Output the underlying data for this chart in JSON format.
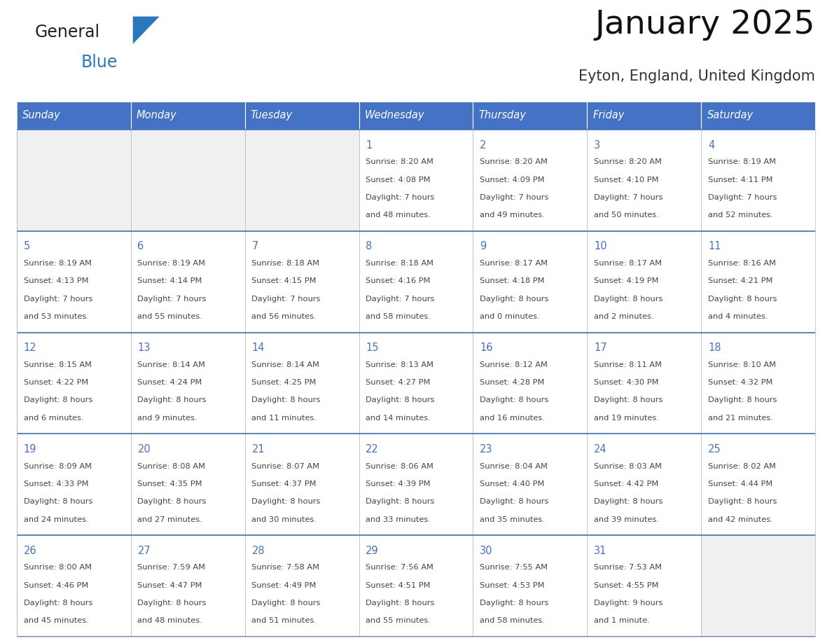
{
  "title": "January 2025",
  "subtitle": "Eyton, England, United Kingdom",
  "header_bg": "#4472C4",
  "header_text_color": "#FFFFFF",
  "cell_bg_white": "#FFFFFF",
  "cell_bg_gray": "#F0F0F0",
  "day_number_color": "#4472C4",
  "text_color": "#444444",
  "border_color": "#4472C4",
  "cell_border_color": "#AAAAAA",
  "days_of_week": [
    "Sunday",
    "Monday",
    "Tuesday",
    "Wednesday",
    "Thursday",
    "Friday",
    "Saturday"
  ],
  "calendar_data": [
    [
      null,
      null,
      null,
      {
        "day": 1,
        "sunrise": "8:20 AM",
        "sunset": "4:08 PM",
        "daylight": "7 hours and 48 minutes."
      },
      {
        "day": 2,
        "sunrise": "8:20 AM",
        "sunset": "4:09 PM",
        "daylight": "7 hours and 49 minutes."
      },
      {
        "day": 3,
        "sunrise": "8:20 AM",
        "sunset": "4:10 PM",
        "daylight": "7 hours and 50 minutes."
      },
      {
        "day": 4,
        "sunrise": "8:19 AM",
        "sunset": "4:11 PM",
        "daylight": "7 hours and 52 minutes."
      }
    ],
    [
      {
        "day": 5,
        "sunrise": "8:19 AM",
        "sunset": "4:13 PM",
        "daylight": "7 hours and 53 minutes."
      },
      {
        "day": 6,
        "sunrise": "8:19 AM",
        "sunset": "4:14 PM",
        "daylight": "7 hours and 55 minutes."
      },
      {
        "day": 7,
        "sunrise": "8:18 AM",
        "sunset": "4:15 PM",
        "daylight": "7 hours and 56 minutes."
      },
      {
        "day": 8,
        "sunrise": "8:18 AM",
        "sunset": "4:16 PM",
        "daylight": "7 hours and 58 minutes."
      },
      {
        "day": 9,
        "sunrise": "8:17 AM",
        "sunset": "4:18 PM",
        "daylight": "8 hours and 0 minutes."
      },
      {
        "day": 10,
        "sunrise": "8:17 AM",
        "sunset": "4:19 PM",
        "daylight": "8 hours and 2 minutes."
      },
      {
        "day": 11,
        "sunrise": "8:16 AM",
        "sunset": "4:21 PM",
        "daylight": "8 hours and 4 minutes."
      }
    ],
    [
      {
        "day": 12,
        "sunrise": "8:15 AM",
        "sunset": "4:22 PM",
        "daylight": "8 hours and 6 minutes."
      },
      {
        "day": 13,
        "sunrise": "8:14 AM",
        "sunset": "4:24 PM",
        "daylight": "8 hours and 9 minutes."
      },
      {
        "day": 14,
        "sunrise": "8:14 AM",
        "sunset": "4:25 PM",
        "daylight": "8 hours and 11 minutes."
      },
      {
        "day": 15,
        "sunrise": "8:13 AM",
        "sunset": "4:27 PM",
        "daylight": "8 hours and 14 minutes."
      },
      {
        "day": 16,
        "sunrise": "8:12 AM",
        "sunset": "4:28 PM",
        "daylight": "8 hours and 16 minutes."
      },
      {
        "day": 17,
        "sunrise": "8:11 AM",
        "sunset": "4:30 PM",
        "daylight": "8 hours and 19 minutes."
      },
      {
        "day": 18,
        "sunrise": "8:10 AM",
        "sunset": "4:32 PM",
        "daylight": "8 hours and 21 minutes."
      }
    ],
    [
      {
        "day": 19,
        "sunrise": "8:09 AM",
        "sunset": "4:33 PM",
        "daylight": "8 hours and 24 minutes."
      },
      {
        "day": 20,
        "sunrise": "8:08 AM",
        "sunset": "4:35 PM",
        "daylight": "8 hours and 27 minutes."
      },
      {
        "day": 21,
        "sunrise": "8:07 AM",
        "sunset": "4:37 PM",
        "daylight": "8 hours and 30 minutes."
      },
      {
        "day": 22,
        "sunrise": "8:06 AM",
        "sunset": "4:39 PM",
        "daylight": "8 hours and 33 minutes."
      },
      {
        "day": 23,
        "sunrise": "8:04 AM",
        "sunset": "4:40 PM",
        "daylight": "8 hours and 35 minutes."
      },
      {
        "day": 24,
        "sunrise": "8:03 AM",
        "sunset": "4:42 PM",
        "daylight": "8 hours and 39 minutes."
      },
      {
        "day": 25,
        "sunrise": "8:02 AM",
        "sunset": "4:44 PM",
        "daylight": "8 hours and 42 minutes."
      }
    ],
    [
      {
        "day": 26,
        "sunrise": "8:00 AM",
        "sunset": "4:46 PM",
        "daylight": "8 hours and 45 minutes."
      },
      {
        "day": 27,
        "sunrise": "7:59 AM",
        "sunset": "4:47 PM",
        "daylight": "8 hours and 48 minutes."
      },
      {
        "day": 28,
        "sunrise": "7:58 AM",
        "sunset": "4:49 PM",
        "daylight": "8 hours and 51 minutes."
      },
      {
        "day": 29,
        "sunrise": "7:56 AM",
        "sunset": "4:51 PM",
        "daylight": "8 hours and 55 minutes."
      },
      {
        "day": 30,
        "sunrise": "7:55 AM",
        "sunset": "4:53 PM",
        "daylight": "8 hours and 58 minutes."
      },
      {
        "day": 31,
        "sunrise": "7:53 AM",
        "sunset": "4:55 PM",
        "daylight": "9 hours and 1 minute."
      },
      null
    ]
  ],
  "logo_color_general": "#222222",
  "logo_color_blue": "#2878BE"
}
